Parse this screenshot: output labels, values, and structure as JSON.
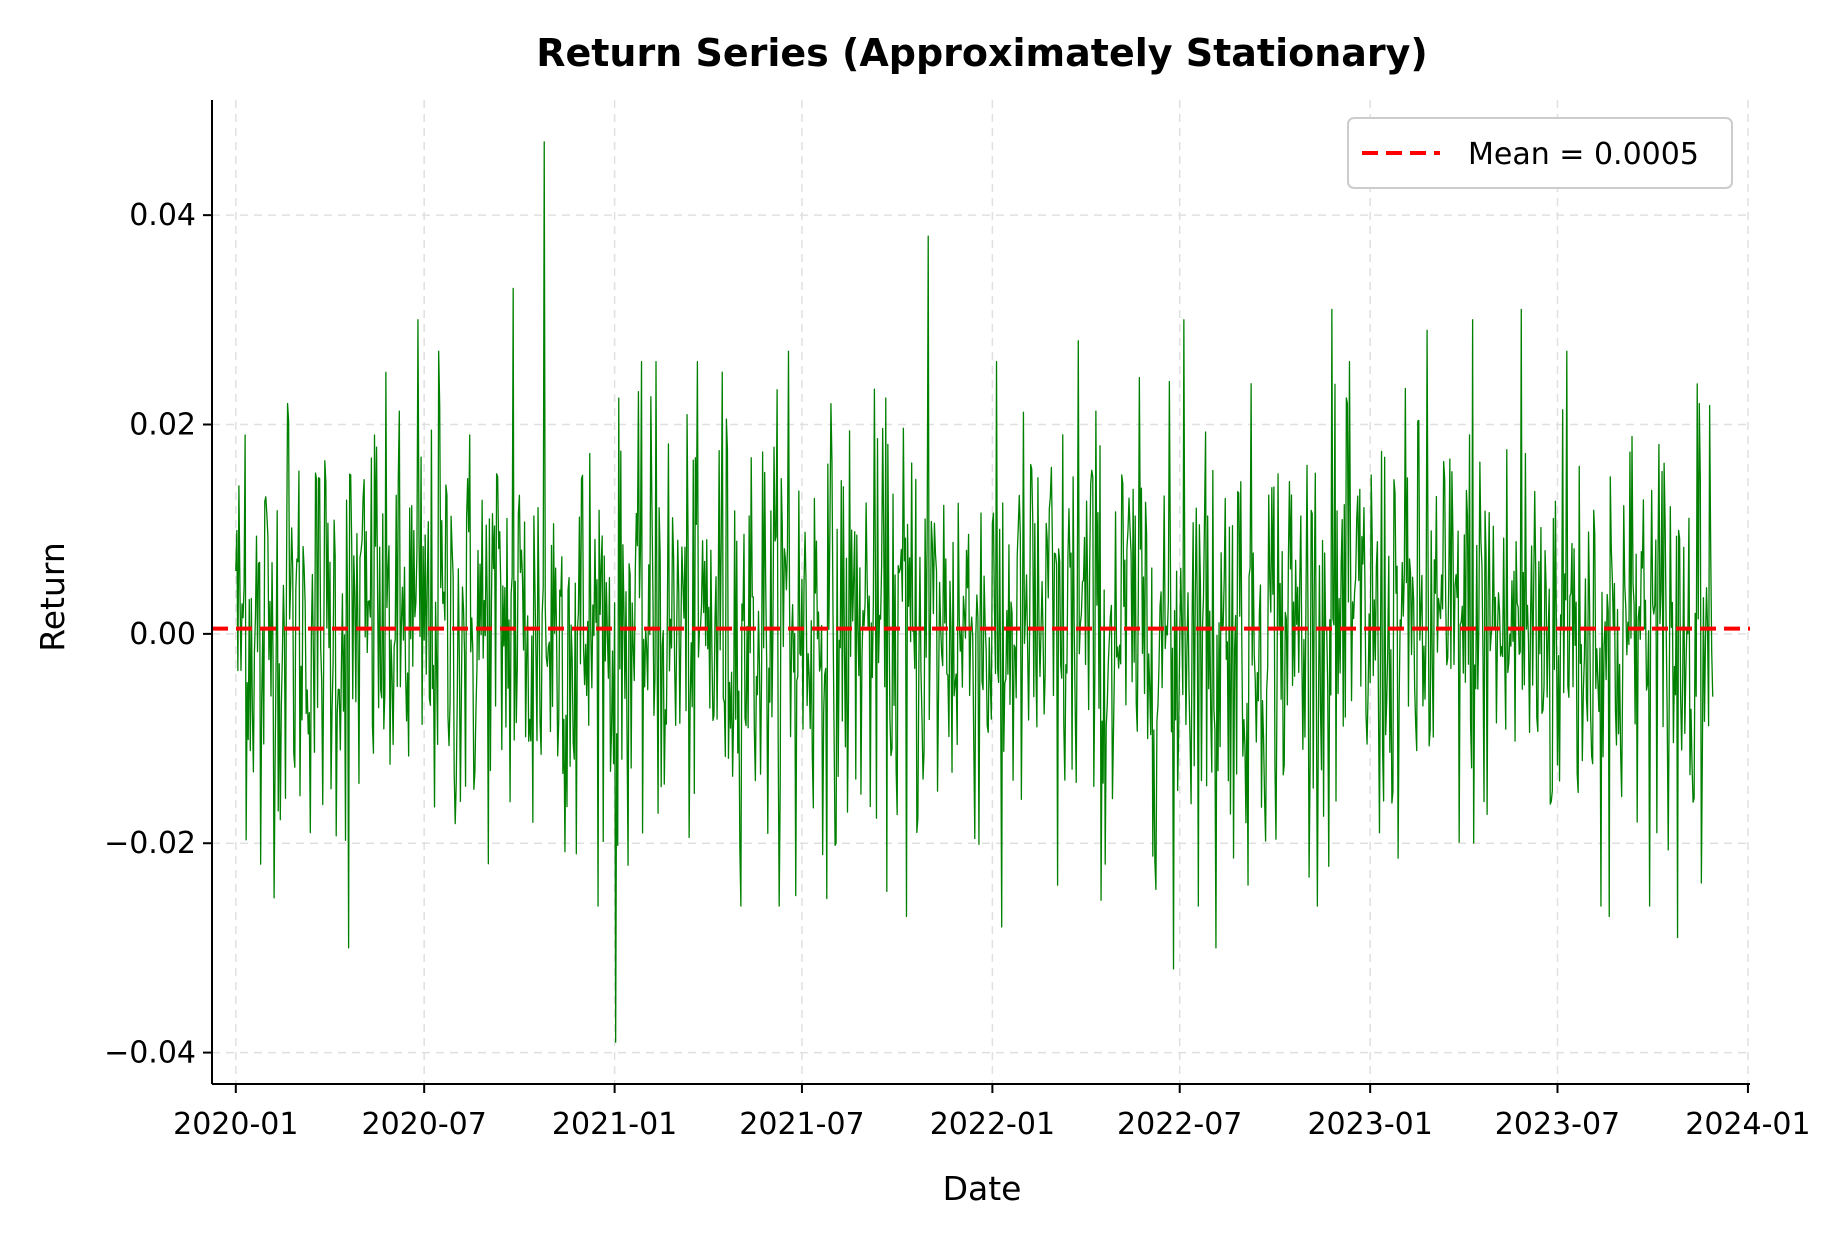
{
  "chart_data": {
    "type": "line",
    "title": "Return Series (Approximately Stationary)",
    "xlabel": "Date",
    "ylabel": "Return",
    "x_ticks": [
      "2020-01",
      "2020-07",
      "2021-01",
      "2021-07",
      "2022-01",
      "2022-07",
      "2023-01",
      "2023-07",
      "2024-01"
    ],
    "y_ticks": [
      "−0.04",
      "−0.02",
      "0.00",
      "0.02",
      "0.04"
    ],
    "xlim": [
      "2019-12-09",
      "2024-01-03"
    ],
    "ylim": [
      -0.043,
      0.051
    ],
    "grid": true,
    "legend_position": "top-right",
    "x_start": "2020-01-01",
    "x_end": "2023-11-28",
    "n_points": 1428,
    "series": [
      {
        "name": "Return",
        "color": "#008000",
        "anchors": [
          {
            "x": "2020-01-01",
            "y": 0.006
          },
          {
            "x": "2020-01-10",
            "y": 0.019
          },
          {
            "x": "2020-01-25",
            "y": -0.022
          },
          {
            "x": "2020-02-20",
            "y": 0.022
          },
          {
            "x": "2020-04-19",
            "y": -0.03
          },
          {
            "x": "2020-05-14",
            "y": 0.019
          },
          {
            "x": "2020-06-25",
            "y": 0.03
          },
          {
            "x": "2020-07-15",
            "y": 0.027
          },
          {
            "x": "2020-08-05",
            "y": -0.016
          },
          {
            "x": "2020-09-25",
            "y": 0.033
          },
          {
            "x": "2020-10-14",
            "y": -0.018
          },
          {
            "x": "2020-10-25",
            "y": 0.047
          },
          {
            "x": "2020-11-25",
            "y": -0.021
          },
          {
            "x": "2021-01-02",
            "y": -0.039
          },
          {
            "x": "2021-02-10",
            "y": 0.026
          },
          {
            "x": "2021-04-15",
            "y": 0.025
          },
          {
            "x": "2021-06-18",
            "y": 0.027
          },
          {
            "x": "2021-06-25",
            "y": -0.025
          },
          {
            "x": "2021-08-03",
            "y": -0.02
          },
          {
            "x": "2021-10-10",
            "y": -0.027
          },
          {
            "x": "2021-10-31",
            "y": 0.038
          },
          {
            "x": "2022-01-10",
            "y": -0.028
          },
          {
            "x": "2022-03-05",
            "y": -0.024
          },
          {
            "x": "2022-03-25",
            "y": 0.028
          },
          {
            "x": "2022-04-20",
            "y": -0.022
          },
          {
            "x": "2022-06-25",
            "y": -0.032
          },
          {
            "x": "2022-07-05",
            "y": 0.03
          },
          {
            "x": "2022-08-05",
            "y": -0.03
          },
          {
            "x": "2022-09-05",
            "y": -0.024
          },
          {
            "x": "2022-11-25",
            "y": 0.031
          },
          {
            "x": "2022-12-10",
            "y": 0.022
          },
          {
            "x": "2023-01-10",
            "y": -0.019
          },
          {
            "x": "2023-02-25",
            "y": 0.029
          },
          {
            "x": "2023-04-10",
            "y": 0.03
          },
          {
            "x": "2023-05-27",
            "y": 0.031
          },
          {
            "x": "2023-06-25",
            "y": -0.016
          },
          {
            "x": "2023-07-10",
            "y": 0.027
          },
          {
            "x": "2023-08-20",
            "y": -0.027
          },
          {
            "x": "2023-10-05",
            "y": -0.019
          },
          {
            "x": "2023-10-25",
            "y": -0.029
          },
          {
            "x": "2023-11-15",
            "y": 0.022
          },
          {
            "x": "2023-11-28",
            "y": -0.006
          }
        ]
      }
    ],
    "mean_line": {
      "label": "Mean = 0.0005",
      "value": 0.0005,
      "color": "#ff0000",
      "style": "dashed"
    }
  }
}
